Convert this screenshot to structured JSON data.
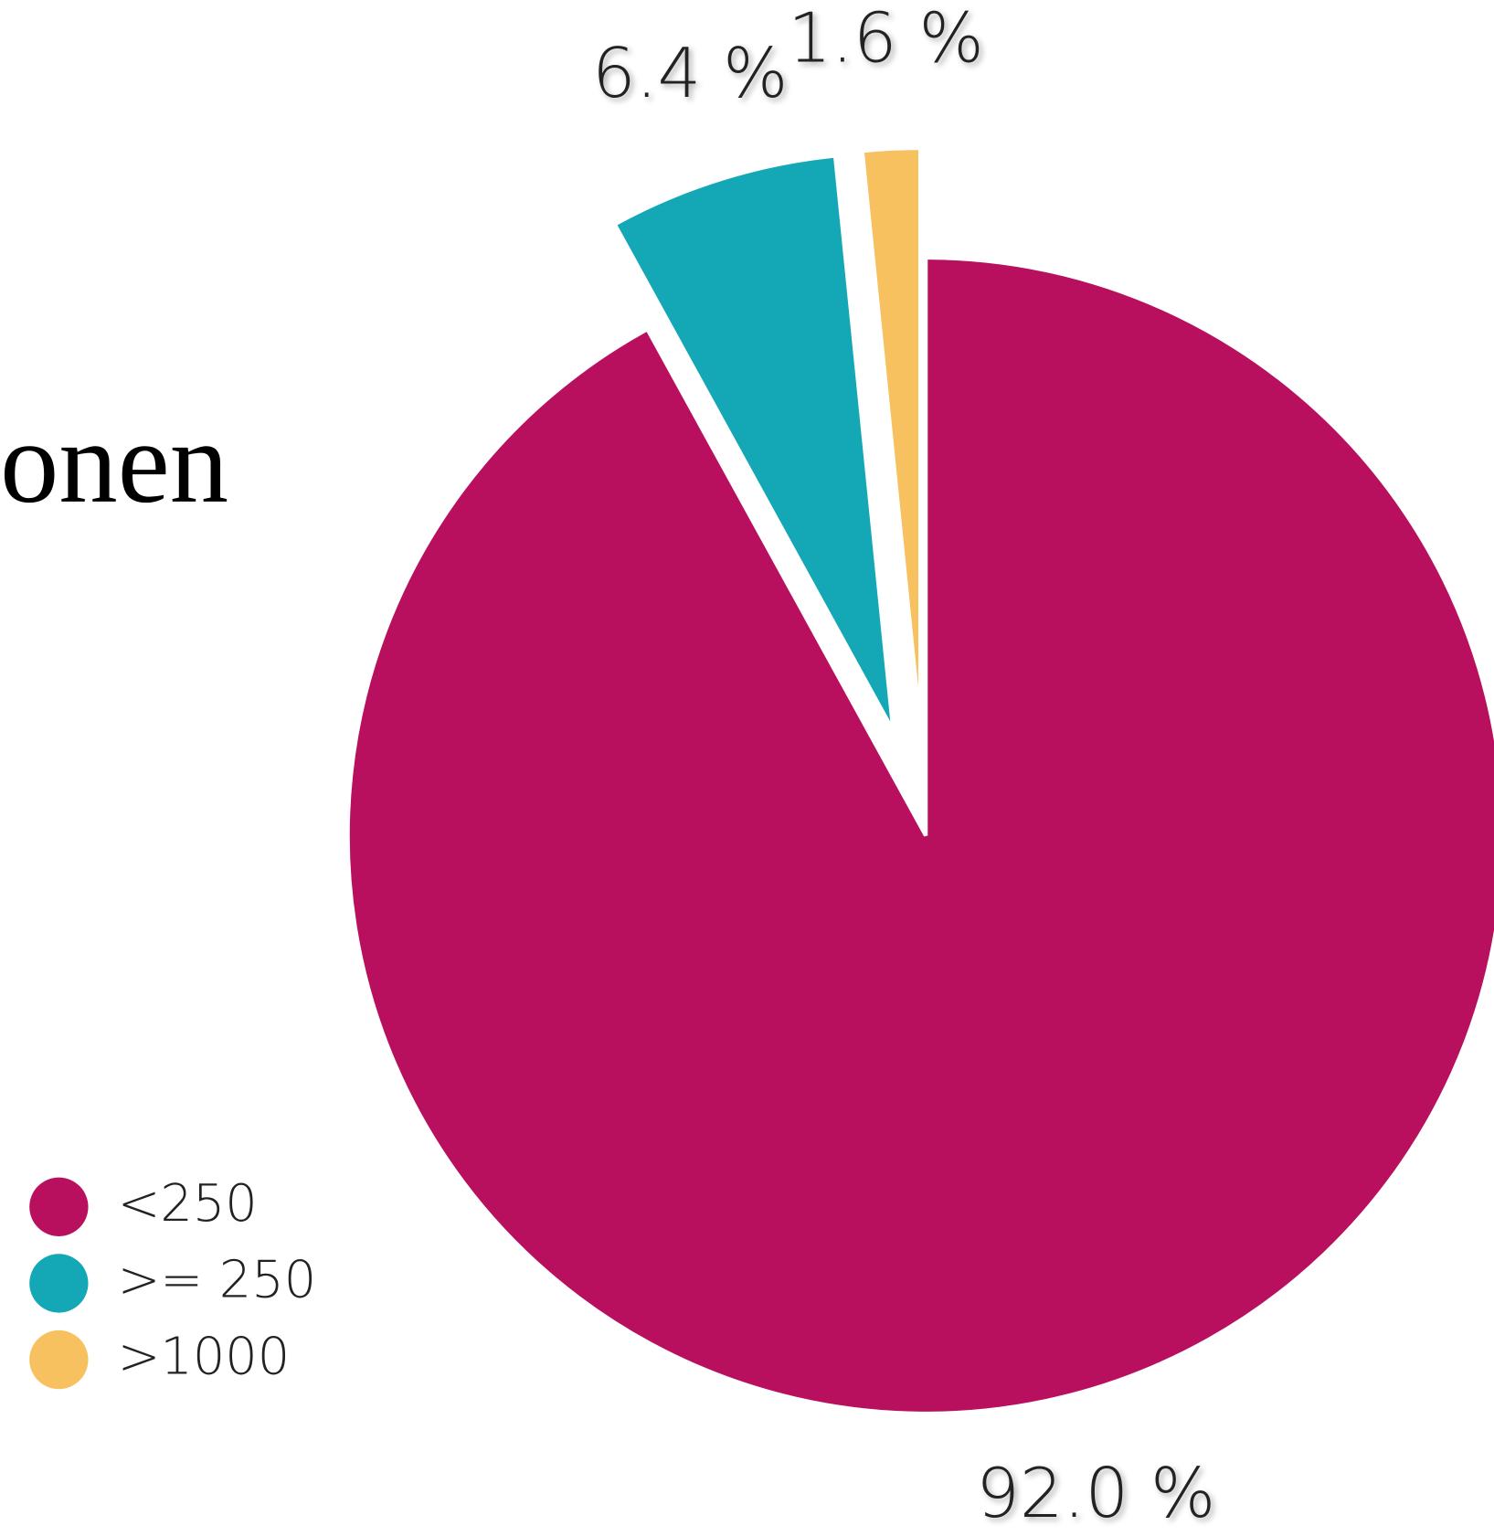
{
  "title": "onen",
  "chart_data": {
    "type": "pie",
    "categories": [
      "<250",
      ">= 250",
      ">1000"
    ],
    "values": [
      92.0,
      6.4,
      1.6
    ],
    "value_labels": [
      "92.0 %",
      "6.4 %",
      "1.6 %"
    ],
    "colors": [
      "#b8105e",
      "#14a8b6",
      "#f6c15e"
    ],
    "exploded": [
      false,
      true,
      true
    ],
    "legend": "bottom-left"
  }
}
